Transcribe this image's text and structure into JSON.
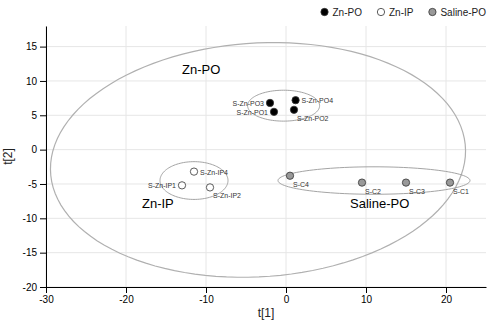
{
  "chart_data": {
    "type": "scatter",
    "xlabel": "t[1]",
    "ylabel": "t[2]",
    "xlim": [
      -30,
      25
    ],
    "ylim": [
      -20,
      18
    ],
    "xticks": [
      -30,
      -20,
      -10,
      0,
      10,
      20
    ],
    "yticks": [
      -20,
      -15,
      -10,
      -5,
      0,
      5,
      10,
      15
    ],
    "grid": true,
    "legend": "upper right",
    "series": [
      {
        "name": "Zn-PO",
        "color": "#000000",
        "marker": "circle",
        "x": [
          -2.0,
          -1.5,
          1.2,
          1.0
        ],
        "values": [
          6.8,
          5.5,
          7.2,
          5.8
        ],
        "labels": [
          "S-Zn-PO3",
          "S-Zn-PO1",
          "S-Zn-PO4",
          "S-Zn-PO2"
        ]
      },
      {
        "name": "Zn-IP",
        "color": "#ffffff",
        "marker": "circle",
        "x": [
          -11.5,
          -13.0,
          -9.5
        ],
        "values": [
          -3.2,
          -5.2,
          -5.5
        ],
        "labels": [
          "S-Zn-IP4",
          "S-Zn-IP1",
          "S-Zn-IP2"
        ]
      },
      {
        "name": "Saline-PO",
        "color": "#999999",
        "marker": "circle",
        "x": [
          0.5,
          9.5,
          15.0,
          20.5
        ],
        "values": [
          -3.8,
          -4.8,
          -4.8,
          -4.8
        ],
        "labels": [
          "S-C4",
          "S-C2",
          "S-C3",
          "S-C1"
        ]
      }
    ],
    "annotations": [
      {
        "text": "Zn-PO",
        "x": -13,
        "y": 11
      },
      {
        "text": "Zn-IP",
        "x": -18,
        "y": -8.5
      },
      {
        "text": "Saline-PO",
        "x": 8,
        "y": -8.5
      }
    ],
    "ellipses": [
      {
        "cx": -3.5,
        "cy": -1.5,
        "width": 52,
        "height": 34,
        "angle": 5
      },
      {
        "cx": -0.3,
        "cy": 6.4,
        "width": 9,
        "height": 4.5,
        "angle": 0
      },
      {
        "cx": -11.5,
        "cy": -4.5,
        "width": 8.5,
        "height": 5.5,
        "angle": 0
      },
      {
        "cx": 11.0,
        "cy": -4.5,
        "width": 24,
        "height": 4.0,
        "angle": 0
      }
    ]
  }
}
